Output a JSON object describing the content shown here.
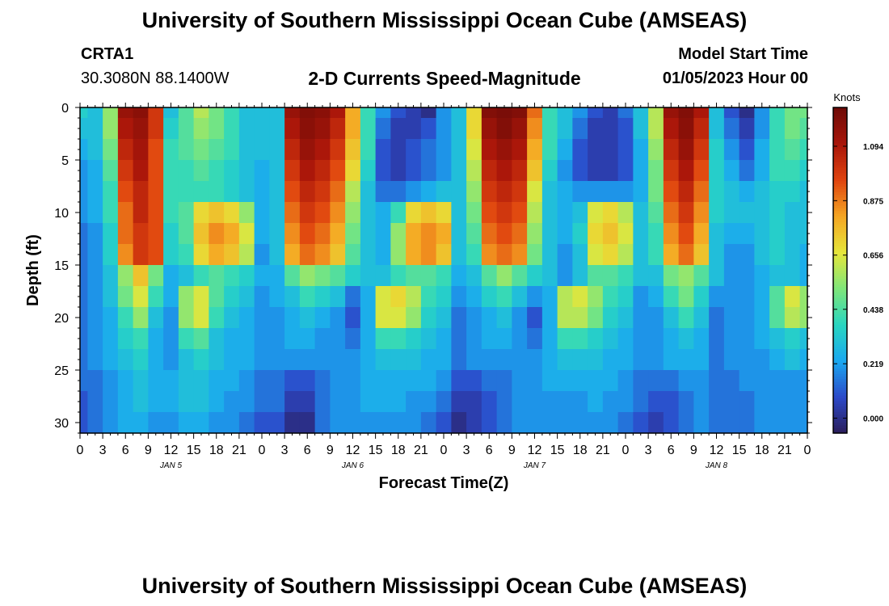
{
  "header": {
    "title_top": "University of Southern Mississippi Ocean Cube (AMSEAS)",
    "title_bottom": "University of Southern Mississippi Ocean Cube (AMSEAS)",
    "station": "CRTA1",
    "coords": "30.3080N  88.1400W",
    "product": "2-D Currents Speed-Magnitude",
    "model_start_label": "Model Start Time",
    "model_start_value": "01/05/2023 Hour 00"
  },
  "colorbar": {
    "unit": "Knots",
    "ticks": [
      1.094,
      0.875,
      0.656,
      0.438,
      0.219,
      0.0
    ],
    "tick_labels": [
      "1.094",
      "0.875",
      "0.656",
      "0.438",
      "0.219",
      "0.000"
    ],
    "vmin": -0.06,
    "vmax": 1.25,
    "colormap": [
      "#2b1d5a",
      "#2c49c9",
      "#1aa8f0",
      "#29d6c1",
      "#7fe67a",
      "#e6e63a",
      "#f5a623",
      "#e0440f",
      "#a9160a",
      "#6e0b07"
    ]
  },
  "chart_data": {
    "type": "heatmap",
    "title": "2-D Currents Speed-Magnitude",
    "xlabel": "Forecast Time(Z)",
    "ylabel": "Depth (ft)",
    "x_range_hours": [
      0,
      96
    ],
    "y_range_ft": [
      0,
      31
    ],
    "x_tick_labels": [
      "0",
      "3",
      "6",
      "9",
      "12",
      "15",
      "18",
      "21",
      "0",
      "3",
      "6",
      "9",
      "12",
      "15",
      "18",
      "21",
      "0",
      "3",
      "6",
      "9",
      "12",
      "15",
      "18",
      "21",
      "0",
      "3",
      "6",
      "9",
      "12",
      "15",
      "18",
      "21",
      "0"
    ],
    "y_tick_labels": [
      "0",
      "5",
      "10",
      "15",
      "20",
      "25",
      "30"
    ],
    "y_ticks": [
      0,
      5,
      10,
      15,
      20,
      25,
      30
    ],
    "day_labels": [
      "JAN 5",
      "JAN 6",
      "JAN 7",
      "JAN 8"
    ],
    "day_label_hours": [
      12,
      36,
      60,
      84
    ],
    "units": "Knots",
    "grid_rows_depth_ft": [
      0,
      2,
      4,
      6,
      8,
      10,
      12,
      14,
      16,
      18,
      20,
      22,
      24,
      26,
      28,
      30
    ],
    "grid_cols_hours": [
      0,
      2,
      4,
      6,
      8,
      10,
      12,
      14,
      16,
      18,
      20,
      22,
      24,
      26,
      28,
      30,
      32,
      34,
      36,
      38,
      40,
      42,
      44,
      46,
      48,
      50,
      52,
      54,
      56,
      58,
      60,
      62,
      64,
      66,
      68,
      70,
      72,
      74,
      76,
      78,
      80,
      82,
      84,
      86,
      88,
      90,
      92,
      94,
      96
    ],
    "values": [
      [
        0.35,
        0.3,
        0.55,
        1.15,
        1.18,
        1.0,
        0.3,
        0.45,
        0.6,
        0.5,
        0.4,
        0.3,
        0.3,
        0.3,
        1.15,
        1.2,
        1.18,
        1.1,
        0.8,
        0.4,
        0.2,
        0.1,
        0.05,
        0.0,
        0.2,
        0.3,
        0.7,
        1.2,
        1.22,
        1.2,
        0.9,
        0.4,
        0.3,
        0.2,
        0.1,
        0.05,
        0.15,
        0.3,
        0.6,
        1.15,
        1.2,
        1.1,
        0.3,
        0.1,
        0.0,
        0.2,
        0.4,
        0.5,
        0.5
      ],
      [
        0.3,
        0.3,
        0.55,
        1.1,
        1.15,
        1.0,
        0.35,
        0.45,
        0.55,
        0.5,
        0.4,
        0.3,
        0.3,
        0.3,
        1.1,
        1.18,
        1.15,
        1.05,
        0.8,
        0.4,
        0.15,
        0.05,
        0.05,
        0.1,
        0.2,
        0.3,
        0.7,
        1.15,
        1.2,
        1.15,
        0.85,
        0.4,
        0.3,
        0.15,
        0.05,
        0.05,
        0.1,
        0.3,
        0.6,
        1.1,
        1.18,
        1.05,
        0.3,
        0.15,
        0.05,
        0.2,
        0.4,
        0.5,
        0.45
      ],
      [
        0.25,
        0.3,
        0.5,
        1.05,
        1.12,
        0.95,
        0.4,
        0.45,
        0.5,
        0.45,
        0.4,
        0.3,
        0.3,
        0.3,
        1.05,
        1.15,
        1.1,
        1.0,
        0.75,
        0.4,
        0.1,
        0.05,
        0.1,
        0.15,
        0.2,
        0.3,
        0.65,
        1.1,
        1.15,
        1.1,
        0.8,
        0.4,
        0.25,
        0.1,
        0.05,
        0.05,
        0.1,
        0.25,
        0.55,
        1.05,
        1.15,
        1.0,
        0.35,
        0.2,
        0.1,
        0.25,
        0.4,
        0.45,
        0.4
      ],
      [
        0.2,
        0.25,
        0.45,
        1.0,
        1.1,
        0.95,
        0.4,
        0.4,
        0.45,
        0.4,
        0.35,
        0.3,
        0.25,
        0.3,
        1.0,
        1.1,
        1.05,
        0.95,
        0.7,
        0.35,
        0.1,
        0.05,
        0.1,
        0.15,
        0.2,
        0.3,
        0.6,
        1.05,
        1.1,
        1.05,
        0.75,
        0.35,
        0.2,
        0.1,
        0.05,
        0.05,
        0.1,
        0.25,
        0.5,
        1.0,
        1.1,
        0.95,
        0.35,
        0.25,
        0.15,
        0.25,
        0.4,
        0.4,
        0.35
      ],
      [
        0.2,
        0.25,
        0.4,
        0.95,
        1.05,
        0.95,
        0.4,
        0.4,
        0.4,
        0.4,
        0.35,
        0.3,
        0.25,
        0.3,
        0.95,
        1.05,
        1.0,
        0.9,
        0.6,
        0.3,
        0.15,
        0.15,
        0.2,
        0.25,
        0.3,
        0.3,
        0.55,
        1.0,
        1.05,
        1.0,
        0.65,
        0.3,
        0.25,
        0.2,
        0.2,
        0.2,
        0.2,
        0.25,
        0.5,
        0.95,
        1.05,
        0.9,
        0.35,
        0.3,
        0.25,
        0.3,
        0.35,
        0.35,
        0.3
      ],
      [
        0.2,
        0.25,
        0.4,
        0.9,
        1.05,
        0.95,
        0.4,
        0.45,
        0.7,
        0.75,
        0.7,
        0.55,
        0.25,
        0.3,
        0.9,
        1.0,
        0.95,
        0.85,
        0.55,
        0.3,
        0.25,
        0.4,
        0.7,
        0.75,
        0.7,
        0.3,
        0.5,
        0.95,
        1.0,
        0.95,
        0.6,
        0.3,
        0.25,
        0.3,
        0.65,
        0.7,
        0.6,
        0.3,
        0.45,
        0.9,
        1.0,
        0.85,
        0.35,
        0.3,
        0.3,
        0.3,
        0.35,
        0.3,
        0.3
      ],
      [
        0.15,
        0.2,
        0.35,
        0.9,
        1.0,
        0.95,
        0.35,
        0.45,
        0.75,
        0.85,
        0.8,
        0.65,
        0.25,
        0.3,
        0.85,
        0.95,
        0.9,
        0.8,
        0.5,
        0.3,
        0.25,
        0.55,
        0.8,
        0.85,
        0.8,
        0.3,
        0.45,
        0.9,
        0.95,
        0.9,
        0.55,
        0.3,
        0.25,
        0.35,
        0.7,
        0.75,
        0.65,
        0.3,
        0.4,
        0.85,
        0.95,
        0.8,
        0.3,
        0.25,
        0.25,
        0.3,
        0.35,
        0.3,
        0.3
      ],
      [
        0.15,
        0.2,
        0.35,
        0.85,
        1.0,
        0.95,
        0.35,
        0.4,
        0.7,
        0.8,
        0.75,
        0.6,
        0.2,
        0.3,
        0.8,
        0.9,
        0.85,
        0.75,
        0.45,
        0.3,
        0.25,
        0.55,
        0.8,
        0.85,
        0.75,
        0.3,
        0.4,
        0.85,
        0.9,
        0.85,
        0.5,
        0.3,
        0.2,
        0.3,
        0.65,
        0.7,
        0.6,
        0.3,
        0.4,
        0.8,
        0.9,
        0.75,
        0.3,
        0.2,
        0.2,
        0.3,
        0.35,
        0.3,
        0.25
      ],
      [
        0.15,
        0.2,
        0.3,
        0.55,
        0.75,
        0.5,
        0.25,
        0.3,
        0.4,
        0.45,
        0.4,
        0.35,
        0.25,
        0.25,
        0.45,
        0.55,
        0.5,
        0.45,
        0.35,
        0.3,
        0.3,
        0.4,
        0.45,
        0.45,
        0.4,
        0.25,
        0.3,
        0.45,
        0.55,
        0.45,
        0.35,
        0.3,
        0.2,
        0.3,
        0.45,
        0.45,
        0.4,
        0.3,
        0.3,
        0.5,
        0.55,
        0.45,
        0.3,
        0.2,
        0.2,
        0.25,
        0.3,
        0.3,
        0.25
      ],
      [
        0.15,
        0.2,
        0.3,
        0.5,
        0.65,
        0.4,
        0.25,
        0.55,
        0.65,
        0.45,
        0.35,
        0.3,
        0.2,
        0.25,
        0.3,
        0.4,
        0.35,
        0.3,
        0.15,
        0.25,
        0.65,
        0.7,
        0.6,
        0.4,
        0.35,
        0.2,
        0.25,
        0.35,
        0.4,
        0.3,
        0.2,
        0.25,
        0.6,
        0.65,
        0.55,
        0.4,
        0.35,
        0.2,
        0.25,
        0.4,
        0.5,
        0.35,
        0.2,
        0.2,
        0.2,
        0.25,
        0.45,
        0.65,
        0.55
      ],
      [
        0.15,
        0.2,
        0.25,
        0.4,
        0.55,
        0.3,
        0.2,
        0.55,
        0.65,
        0.4,
        0.3,
        0.25,
        0.2,
        0.2,
        0.25,
        0.3,
        0.25,
        0.2,
        0.1,
        0.25,
        0.65,
        0.65,
        0.55,
        0.35,
        0.3,
        0.15,
        0.2,
        0.25,
        0.3,
        0.2,
        0.1,
        0.25,
        0.6,
        0.6,
        0.5,
        0.35,
        0.3,
        0.2,
        0.2,
        0.3,
        0.4,
        0.3,
        0.15,
        0.2,
        0.2,
        0.25,
        0.45,
        0.6,
        0.55
      ],
      [
        0.15,
        0.2,
        0.25,
        0.35,
        0.4,
        0.25,
        0.2,
        0.4,
        0.45,
        0.3,
        0.25,
        0.25,
        0.2,
        0.2,
        0.25,
        0.25,
        0.2,
        0.2,
        0.15,
        0.25,
        0.4,
        0.4,
        0.35,
        0.3,
        0.25,
        0.15,
        0.2,
        0.25,
        0.25,
        0.2,
        0.15,
        0.25,
        0.4,
        0.4,
        0.35,
        0.3,
        0.25,
        0.2,
        0.2,
        0.25,
        0.3,
        0.25,
        0.15,
        0.2,
        0.2,
        0.25,
        0.3,
        0.35,
        0.3
      ],
      [
        0.15,
        0.2,
        0.25,
        0.3,
        0.35,
        0.25,
        0.2,
        0.3,
        0.35,
        0.3,
        0.25,
        0.25,
        0.2,
        0.2,
        0.2,
        0.2,
        0.2,
        0.2,
        0.2,
        0.25,
        0.3,
        0.3,
        0.3,
        0.25,
        0.25,
        0.15,
        0.2,
        0.2,
        0.2,
        0.2,
        0.2,
        0.25,
        0.3,
        0.3,
        0.3,
        0.25,
        0.25,
        0.2,
        0.2,
        0.25,
        0.25,
        0.25,
        0.15,
        0.2,
        0.2,
        0.2,
        0.25,
        0.3,
        0.25
      ],
      [
        0.15,
        0.15,
        0.2,
        0.25,
        0.3,
        0.25,
        0.25,
        0.3,
        0.3,
        0.25,
        0.25,
        0.2,
        0.15,
        0.15,
        0.1,
        0.1,
        0.15,
        0.2,
        0.2,
        0.25,
        0.25,
        0.25,
        0.25,
        0.25,
        0.2,
        0.1,
        0.1,
        0.15,
        0.15,
        0.2,
        0.2,
        0.25,
        0.25,
        0.25,
        0.25,
        0.25,
        0.2,
        0.15,
        0.15,
        0.15,
        0.2,
        0.2,
        0.15,
        0.15,
        0.2,
        0.2,
        0.2,
        0.2,
        0.2
      ],
      [
        0.1,
        0.15,
        0.2,
        0.25,
        0.3,
        0.25,
        0.25,
        0.3,
        0.3,
        0.25,
        0.2,
        0.2,
        0.15,
        0.15,
        0.05,
        0.05,
        0.15,
        0.2,
        0.2,
        0.25,
        0.25,
        0.25,
        0.2,
        0.2,
        0.15,
        0.05,
        0.05,
        0.1,
        0.15,
        0.2,
        0.2,
        0.2,
        0.2,
        0.2,
        0.25,
        0.2,
        0.2,
        0.15,
        0.1,
        0.1,
        0.15,
        0.2,
        0.15,
        0.15,
        0.15,
        0.2,
        0.2,
        0.2,
        0.2
      ],
      [
        0.1,
        0.15,
        0.2,
        0.25,
        0.25,
        0.2,
        0.2,
        0.25,
        0.25,
        0.2,
        0.2,
        0.15,
        0.1,
        0.1,
        0.0,
        0.0,
        0.15,
        0.2,
        0.2,
        0.2,
        0.2,
        0.2,
        0.2,
        0.15,
        0.1,
        0.0,
        0.05,
        0.1,
        0.15,
        0.2,
        0.2,
        0.2,
        0.2,
        0.2,
        0.2,
        0.2,
        0.15,
        0.1,
        0.05,
        0.1,
        0.15,
        0.2,
        0.15,
        0.15,
        0.15,
        0.2,
        0.2,
        0.2,
        0.2
      ]
    ]
  }
}
